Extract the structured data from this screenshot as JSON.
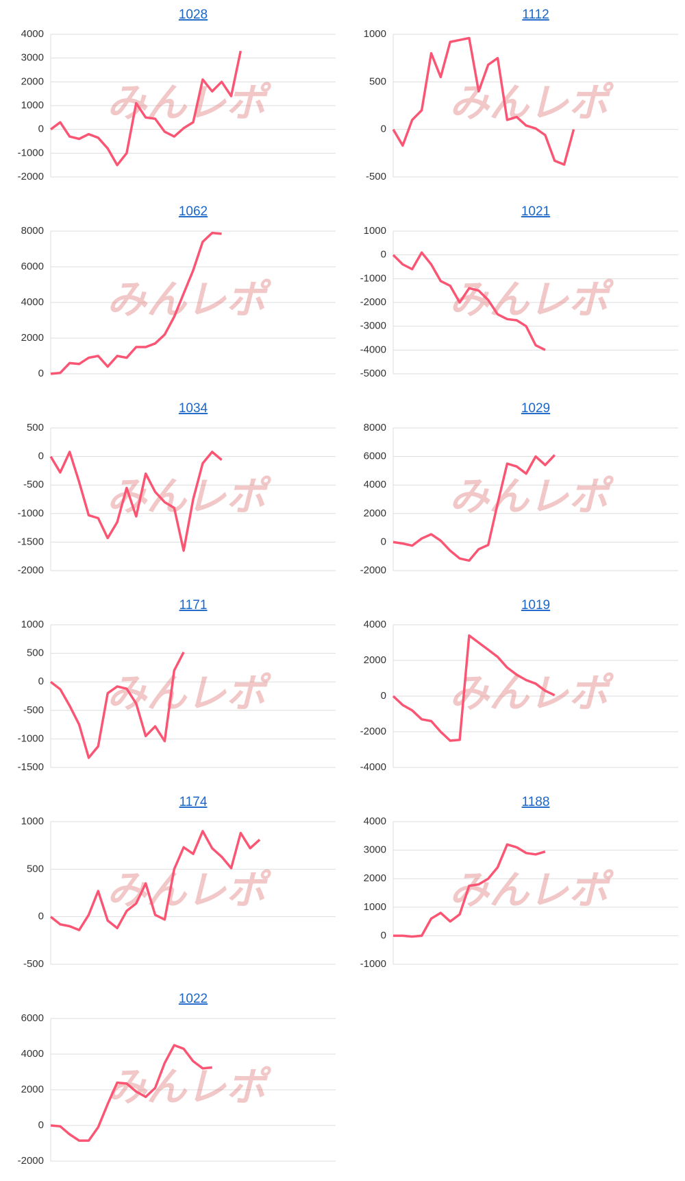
{
  "watermark": "みんレポ",
  "chart_data": [
    {
      "type": "line",
      "title": "1028",
      "color": "#fb5574",
      "ylim": [
        -2000,
        4000
      ],
      "yticks": [
        -2000,
        -1000,
        0,
        1000,
        2000,
        3000,
        4000
      ],
      "values": [
        0,
        300,
        -300,
        -400,
        -200,
        -350,
        -800,
        -1500,
        -1000,
        1100,
        500,
        450,
        -100,
        -300,
        50,
        300,
        2100,
        1600,
        2000,
        1400,
        3300
      ]
    },
    {
      "type": "line",
      "title": "1112",
      "color": "#fb5574",
      "ylim": [
        -500,
        1000
      ],
      "yticks": [
        -500,
        0,
        500,
        1000
      ],
      "values": [
        0,
        -170,
        100,
        200,
        800,
        550,
        920,
        940,
        960,
        400,
        680,
        750,
        100,
        130,
        40,
        10,
        -60,
        -330,
        -370,
        0
      ]
    },
    {
      "type": "line",
      "title": "1062",
      "color": "#fb5574",
      "ylim": [
        0,
        8000
      ],
      "yticks": [
        0,
        2000,
        4000,
        6000,
        8000
      ],
      "values": [
        0,
        50,
        600,
        550,
        900,
        1000,
        400,
        1000,
        900,
        1500,
        1500,
        1700,
        2200,
        3200,
        4500,
        5800,
        7400,
        7900,
        7850
      ]
    },
    {
      "type": "line",
      "title": "1021",
      "color": "#fb5574",
      "ylim": [
        -5000,
        1000
      ],
      "yticks": [
        -5000,
        -4000,
        -3000,
        -2000,
        -1000,
        0,
        1000
      ],
      "values": [
        0,
        -400,
        -600,
        100,
        -400,
        -1100,
        -1300,
        -2000,
        -1400,
        -1500,
        -1900,
        -2500,
        -2700,
        -2750,
        -3000,
        -3800,
        -4000
      ]
    },
    {
      "type": "line",
      "title": "1034",
      "color": "#fb5574",
      "ylim": [
        -2000,
        500
      ],
      "yticks": [
        -2000,
        -1500,
        -1000,
        -500,
        0,
        500
      ],
      "values": [
        0,
        -280,
        80,
        -450,
        -1030,
        -1080,
        -1430,
        -1150,
        -550,
        -1050,
        -300,
        -620,
        -800,
        -900,
        -1650,
        -750,
        -120,
        80,
        -60
      ]
    },
    {
      "type": "line",
      "title": "1029",
      "color": "#fb5574",
      "ylim": [
        -2000,
        8000
      ],
      "yticks": [
        -2000,
        0,
        2000,
        4000,
        6000,
        8000
      ],
      "values": [
        0,
        -100,
        -250,
        250,
        550,
        100,
        -600,
        -1150,
        -1300,
        -500,
        -200,
        2700,
        5500,
        5300,
        4800,
        6000,
        5400,
        6100
      ]
    },
    {
      "type": "line",
      "title": "1171",
      "color": "#fb5574",
      "ylim": [
        -1500,
        1000
      ],
      "yticks": [
        -1500,
        -1000,
        -500,
        0,
        500,
        1000
      ],
      "values": [
        0,
        -130,
        -420,
        -750,
        -1330,
        -1130,
        -200,
        -80,
        -120,
        -380,
        -950,
        -780,
        -1040,
        200,
        520
      ]
    },
    {
      "type": "line",
      "title": "1019",
      "color": "#fb5574",
      "ylim": [
        -4000,
        4000
      ],
      "yticks": [
        -4000,
        -2000,
        0,
        2000,
        4000
      ],
      "values": [
        0,
        -500,
        -800,
        -1300,
        -1400,
        -2000,
        -2500,
        -2450,
        3400,
        3000,
        2600,
        2200,
        1600,
        1200,
        900,
        700,
        300,
        50
      ]
    },
    {
      "type": "line",
      "title": "1174",
      "color": "#fb5574",
      "ylim": [
        -500,
        1000
      ],
      "yticks": [
        -500,
        0,
        500,
        1000
      ],
      "values": [
        0,
        -80,
        -100,
        -140,
        20,
        270,
        -40,
        -120,
        60,
        140,
        350,
        20,
        -30,
        500,
        730,
        660,
        900,
        720,
        630,
        510,
        880,
        720,
        810
      ]
    },
    {
      "type": "line",
      "title": "1188",
      "color": "#fb5574",
      "ylim": [
        -1000,
        4000
      ],
      "yticks": [
        -1000,
        0,
        1000,
        2000,
        3000,
        4000
      ],
      "values": [
        0,
        0,
        -30,
        0,
        600,
        800,
        500,
        750,
        1750,
        1800,
        2000,
        2400,
        3200,
        3100,
        2900,
        2850,
        2950
      ]
    },
    {
      "type": "line",
      "title": "1022",
      "color": "#fb5574",
      "ylim": [
        -2000,
        6000
      ],
      "yticks": [
        -2000,
        0,
        2000,
        4000,
        6000
      ],
      "values": [
        0,
        -50,
        -500,
        -850,
        -850,
        -100,
        1200,
        2400,
        2350,
        1900,
        1600,
        2100,
        3500,
        4500,
        4300,
        3600,
        3200,
        3250
      ]
    }
  ]
}
